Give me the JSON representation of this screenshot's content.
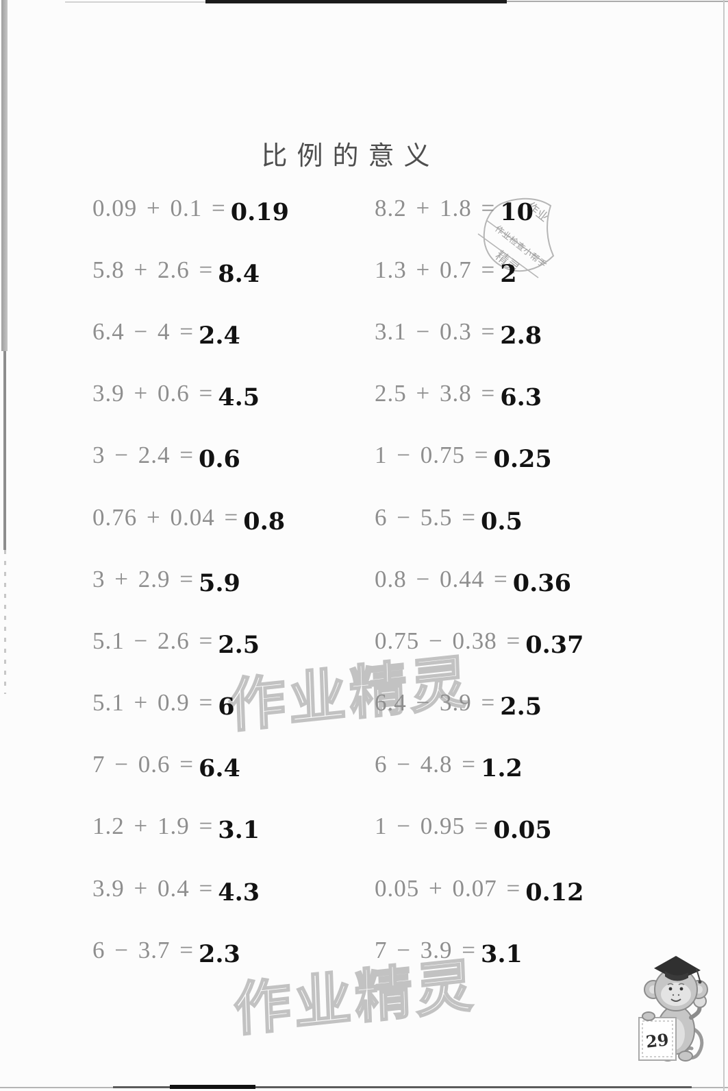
{
  "page": {
    "title": "比例的意义",
    "page_number": "29"
  },
  "problems": {
    "left": [
      {
        "expression": "0.09 + 0.1 =",
        "answer": "0.19"
      },
      {
        "expression": "5.8 + 2.6 =",
        "answer": "8.4"
      },
      {
        "expression": "6.4 − 4 =",
        "answer": "2.4"
      },
      {
        "expression": "3.9 + 0.6 =",
        "answer": "4.5"
      },
      {
        "expression": "3 − 2.4 =",
        "answer": "0.6"
      },
      {
        "expression": "0.76 + 0.04 =",
        "answer": "0.8"
      },
      {
        "expression": "3 + 2.9 =",
        "answer": "5.9"
      },
      {
        "expression": "5.1 − 2.6 =",
        "answer": "2.5"
      },
      {
        "expression": "5.1 + 0.9 =",
        "answer": "6"
      },
      {
        "expression": "7 − 0.6 =",
        "answer": "6.4"
      },
      {
        "expression": "1.2 + 1.9 =",
        "answer": "3.1"
      },
      {
        "expression": "3.9 + 0.4 =",
        "answer": "4.3"
      },
      {
        "expression": "6 − 3.7 =",
        "answer": "2.3"
      }
    ],
    "right": [
      {
        "expression": "8.2 + 1.8 =",
        "answer": "10"
      },
      {
        "expression": "1.3 + 0.7 =",
        "answer": "2"
      },
      {
        "expression": "3.1 − 0.3 =",
        "answer": "2.8"
      },
      {
        "expression": "2.5 + 3.8 =",
        "answer": "6.3"
      },
      {
        "expression": "1 − 0.75 =",
        "answer": "0.25"
      },
      {
        "expression": "6 − 5.5 =",
        "answer": "0.5"
      },
      {
        "expression": "0.8 − 0.44 =",
        "answer": "0.36"
      },
      {
        "expression": "0.75 − 0.38 =",
        "answer": "0.37"
      },
      {
        "expression": "6.4 − 3.9 =",
        "answer": "2.5"
      },
      {
        "expression": "6 − 4.8 =",
        "answer": "1.2"
      },
      {
        "expression": "1 − 0.95 =",
        "answer": "0.05"
      },
      {
        "expression": "0.05 + 0.07 =",
        "answer": "0.12"
      },
      {
        "expression": "7 − 3.9 =",
        "answer": "3.1"
      }
    ]
  },
  "watermark": {
    "text": "作业精灵"
  },
  "stamp": {
    "line_top": "作业",
    "line_band": "作业检查小帮手",
    "line_bottom": "精灵"
  }
}
